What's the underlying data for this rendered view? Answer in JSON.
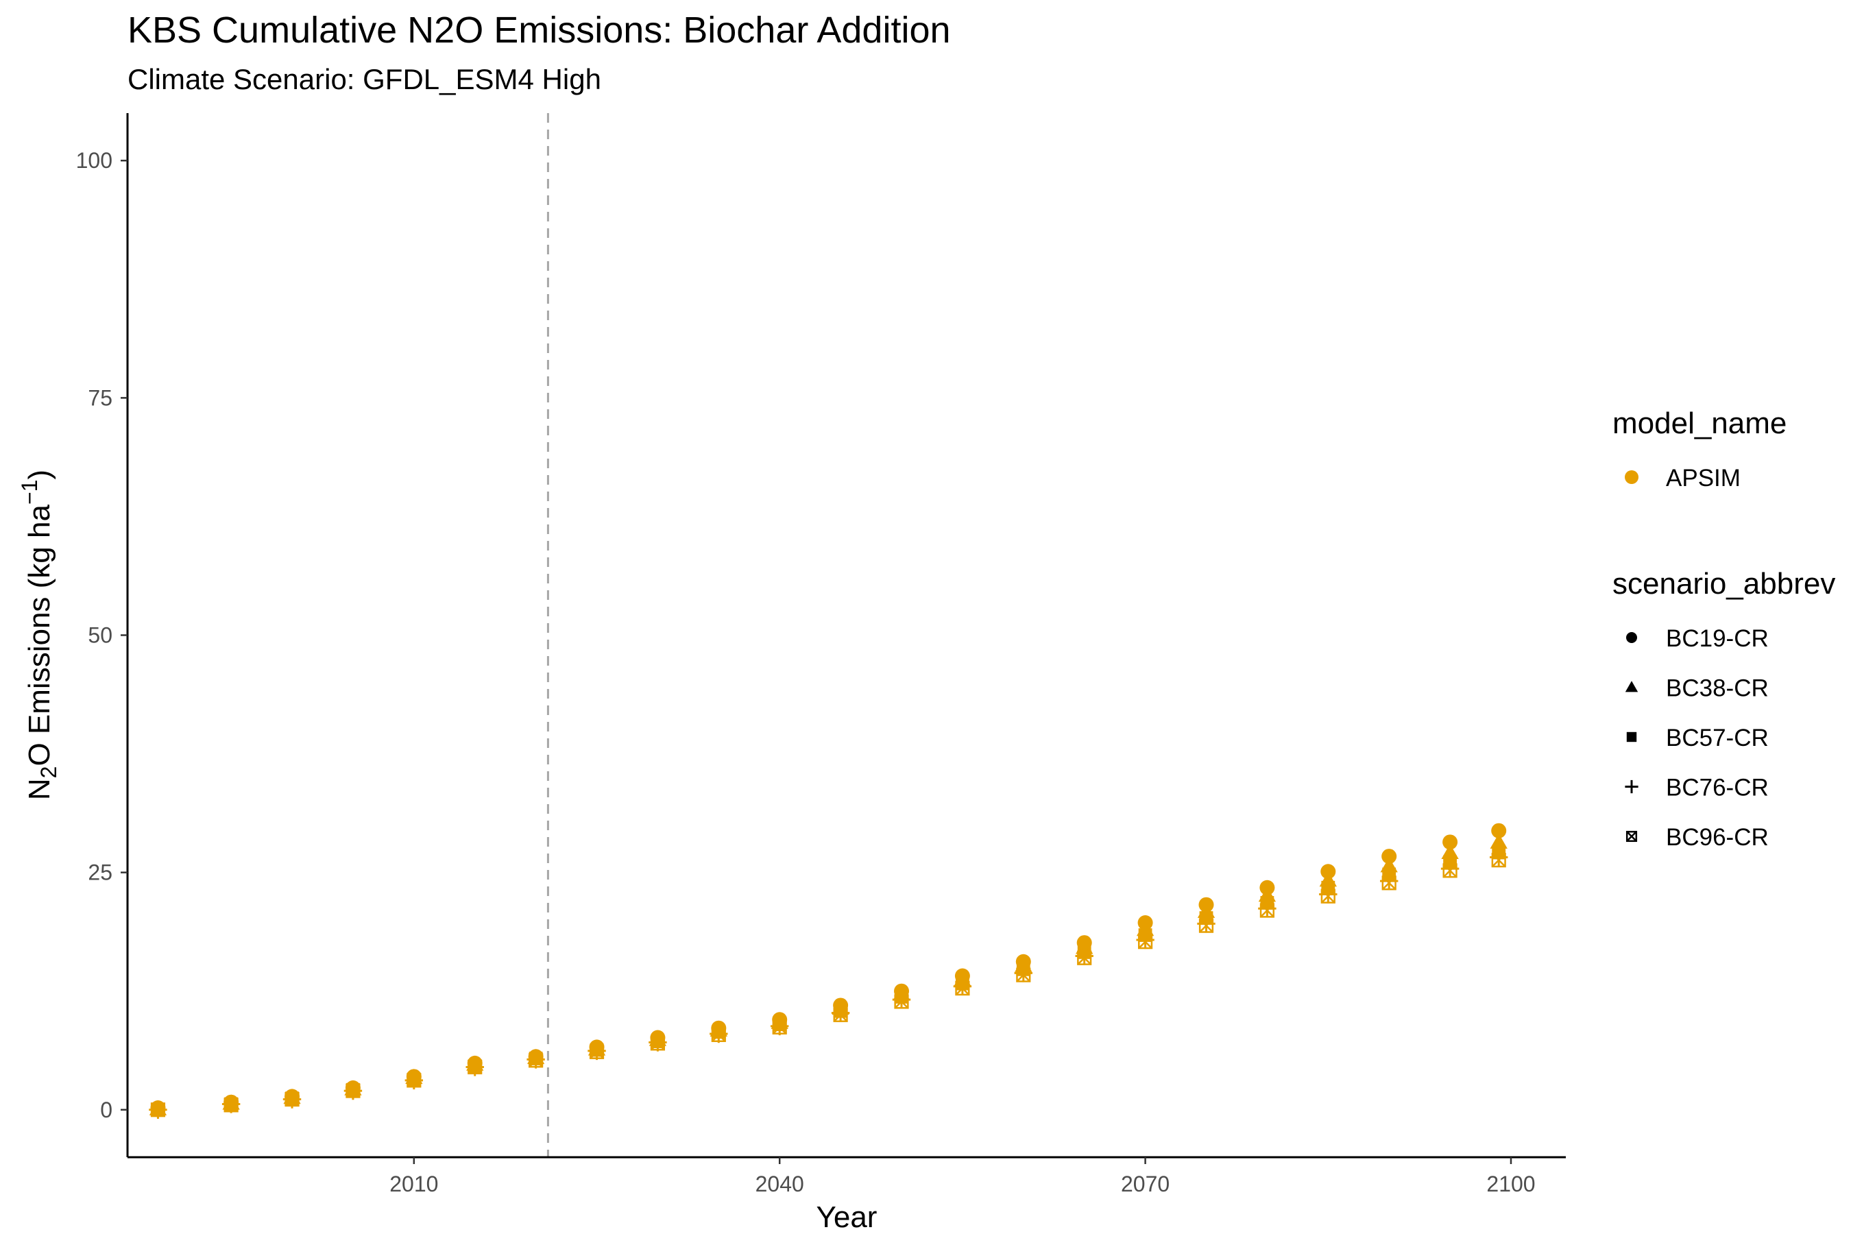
{
  "chart_data": {
    "type": "scatter",
    "title": "KBS  Cumulative N2O Emissions: Biochar Addition",
    "subtitle": "Climate Scenario: GFDL_ESM4 High",
    "xlabel": "Year",
    "ylabel": {
      "prefix": "N",
      "sub": "2",
      "mid": "O Emissions (kg ha",
      "sup": "−1",
      "suffix": ")"
    },
    "xlim": [
      1986.5,
      2104.5
    ],
    "ylim": [
      -5,
      105
    ],
    "x_ticks": [
      2010,
      2040,
      2070,
      2100
    ],
    "y_ticks": [
      0,
      25,
      50,
      75,
      100
    ],
    "reference_line": {
      "x": 2021,
      "style": "dashed",
      "color": "#a6a6a6"
    },
    "grid": false,
    "legend_position": "right",
    "color_legend": {
      "title": "model_name",
      "entries": [
        {
          "label": "APSIM",
          "color": "#E69F00"
        }
      ]
    },
    "shape_legend": {
      "title": "scenario_abbrev",
      "entries": [
        {
          "label": "BC19-CR",
          "shape": "circle"
        },
        {
          "label": "BC38-CR",
          "shape": "triangle"
        },
        {
          "label": "BC57-CR",
          "shape": "square"
        },
        {
          "label": "BC76-CR",
          "shape": "plus"
        },
        {
          "label": "BC96-CR",
          "shape": "boxed-x"
        }
      ]
    },
    "series_color": "#E69F00",
    "series": [
      {
        "name": "BC19-CR",
        "model": "APSIM",
        "shape": "circle",
        "points": [
          [
            1989,
            0.2
          ],
          [
            1995,
            0.8
          ],
          [
            2000,
            1.4
          ],
          [
            2005,
            2.3
          ],
          [
            2010,
            3.5
          ],
          [
            2015,
            4.9
          ],
          [
            2020,
            5.6
          ],
          [
            2025,
            6.6
          ],
          [
            2030,
            7.6
          ],
          [
            2035,
            8.6
          ],
          [
            2040,
            9.5
          ],
          [
            2045,
            11.0
          ],
          [
            2050,
            12.5
          ],
          [
            2055,
            14.1
          ],
          [
            2060,
            15.6
          ],
          [
            2065,
            17.6
          ],
          [
            2070,
            19.7
          ],
          [
            2075,
            21.6
          ],
          [
            2080,
            23.4
          ],
          [
            2085,
            25.1
          ],
          [
            2090,
            26.7
          ],
          [
            2095,
            28.2
          ],
          [
            2099,
            29.4
          ]
        ]
      },
      {
        "name": "BC38-CR",
        "model": "APSIM",
        "shape": "triangle",
        "points": [
          [
            1989,
            0.1
          ],
          [
            1995,
            0.7
          ],
          [
            2000,
            1.3
          ],
          [
            2005,
            2.2
          ],
          [
            2010,
            3.4
          ],
          [
            2015,
            4.8
          ],
          [
            2020,
            5.5
          ],
          [
            2025,
            6.4
          ],
          [
            2030,
            7.4
          ],
          [
            2035,
            8.4
          ],
          [
            2040,
            9.2
          ],
          [
            2045,
            10.7
          ],
          [
            2050,
            12.2
          ],
          [
            2055,
            13.7
          ],
          [
            2060,
            15.2
          ],
          [
            2065,
            17.1
          ],
          [
            2070,
            19.0
          ],
          [
            2075,
            20.9
          ],
          [
            2080,
            22.6
          ],
          [
            2085,
            24.2
          ],
          [
            2090,
            25.7
          ],
          [
            2095,
            27.1
          ],
          [
            2099,
            28.2
          ]
        ]
      },
      {
        "name": "BC57-CR",
        "model": "APSIM",
        "shape": "square",
        "points": [
          [
            1989,
            0.0
          ],
          [
            1995,
            0.6
          ],
          [
            2000,
            1.2
          ],
          [
            2005,
            2.1
          ],
          [
            2010,
            3.2
          ],
          [
            2015,
            4.6
          ],
          [
            2020,
            5.4
          ],
          [
            2025,
            6.3
          ],
          [
            2030,
            7.2
          ],
          [
            2035,
            8.2
          ],
          [
            2040,
            9.0
          ],
          [
            2045,
            10.4
          ],
          [
            2050,
            11.9
          ],
          [
            2055,
            13.3
          ],
          [
            2060,
            14.8
          ],
          [
            2065,
            16.6
          ],
          [
            2070,
            18.4
          ],
          [
            2075,
            20.2
          ],
          [
            2080,
            21.8
          ],
          [
            2085,
            23.4
          ],
          [
            2090,
            24.8
          ],
          [
            2095,
            26.1
          ],
          [
            2099,
            27.1
          ]
        ]
      },
      {
        "name": "BC76-CR",
        "model": "APSIM",
        "shape": "plus",
        "points": [
          [
            1989,
            0.0
          ],
          [
            1995,
            0.6
          ],
          [
            2000,
            1.1
          ],
          [
            2005,
            2.0
          ],
          [
            2010,
            3.1
          ],
          [
            2015,
            4.5
          ],
          [
            2020,
            5.3
          ],
          [
            2025,
            6.2
          ],
          [
            2030,
            7.1
          ],
          [
            2035,
            8.0
          ],
          [
            2040,
            8.8
          ],
          [
            2045,
            10.2
          ],
          [
            2050,
            11.6
          ],
          [
            2055,
            13.0
          ],
          [
            2060,
            14.4
          ],
          [
            2065,
            16.2
          ],
          [
            2070,
            17.9
          ],
          [
            2075,
            19.6
          ],
          [
            2080,
            21.2
          ],
          [
            2085,
            22.7
          ],
          [
            2090,
            24.1
          ],
          [
            2095,
            25.4
          ],
          [
            2099,
            26.6
          ]
        ]
      },
      {
        "name": "BC96-CR",
        "model": "APSIM",
        "shape": "boxed-x",
        "points": [
          [
            1989,
            0.0
          ],
          [
            1995,
            0.5
          ],
          [
            2000,
            1.1
          ],
          [
            2005,
            2.0
          ],
          [
            2010,
            3.1
          ],
          [
            2015,
            4.5
          ],
          [
            2020,
            5.2
          ],
          [
            2025,
            6.1
          ],
          [
            2030,
            7.0
          ],
          [
            2035,
            7.9
          ],
          [
            2040,
            8.7
          ],
          [
            2045,
            10.0
          ],
          [
            2050,
            11.4
          ],
          [
            2055,
            12.8
          ],
          [
            2060,
            14.2
          ],
          [
            2065,
            16.0
          ],
          [
            2070,
            17.7
          ],
          [
            2075,
            19.4
          ],
          [
            2080,
            21.0
          ],
          [
            2085,
            22.5
          ],
          [
            2090,
            23.9
          ],
          [
            2095,
            25.2
          ],
          [
            2099,
            26.3
          ]
        ]
      }
    ]
  }
}
